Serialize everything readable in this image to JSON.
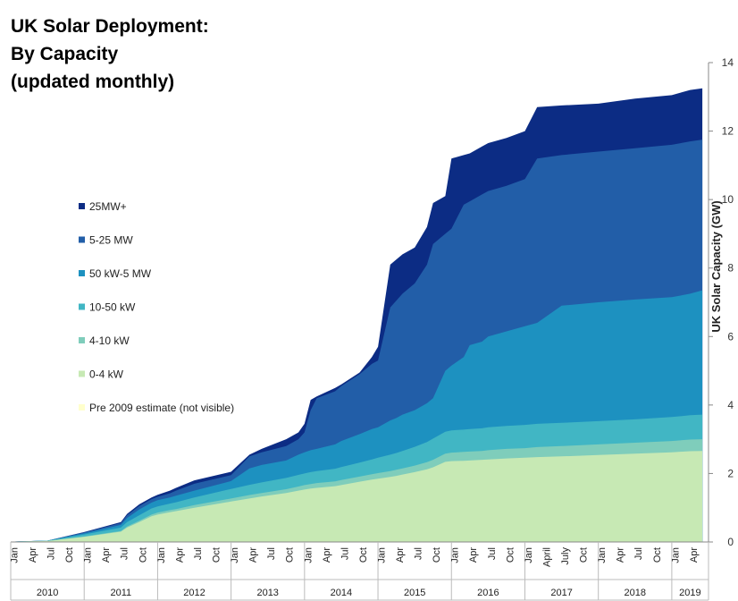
{
  "chart_data": {
    "type": "area",
    "title_lines": [
      "UK Solar Deployment:",
      "By Capacity",
      "(updated monthly)"
    ],
    "ylabel": "UK Solar Capacity (GW)",
    "ylim": [
      0,
      14
    ],
    "yticks": [
      0,
      2,
      4,
      6,
      8,
      10,
      12,
      14
    ],
    "x_start": "2010-01",
    "x_end": "2019-06",
    "years": [
      "2010",
      "2011",
      "2012",
      "2013",
      "2014",
      "2015",
      "2016",
      "2017",
      "2018",
      "2019"
    ],
    "month_ticks": [
      {
        "t": 0,
        "label": "Jan"
      },
      {
        "t": 3,
        "label": "Apr"
      },
      {
        "t": 6,
        "label": "Jul"
      },
      {
        "t": 9,
        "label": "Oct"
      },
      {
        "t": 12,
        "label": "Jan"
      },
      {
        "t": 15,
        "label": "Apr"
      },
      {
        "t": 18,
        "label": "Jul"
      },
      {
        "t": 21,
        "label": "Oct"
      },
      {
        "t": 24,
        "label": "Jan"
      },
      {
        "t": 27,
        "label": "Apr"
      },
      {
        "t": 30,
        "label": "Jul"
      },
      {
        "t": 33,
        "label": "Oct"
      },
      {
        "t": 36,
        "label": "Jan"
      },
      {
        "t": 39,
        "label": "Apr"
      },
      {
        "t": 42,
        "label": "Jul"
      },
      {
        "t": 45,
        "label": "Oct"
      },
      {
        "t": 48,
        "label": "Jan"
      },
      {
        "t": 51,
        "label": "Apr"
      },
      {
        "t": 54,
        "label": "Jul"
      },
      {
        "t": 57,
        "label": "Oct"
      },
      {
        "t": 60,
        "label": "Jan"
      },
      {
        "t": 63,
        "label": "Apr"
      },
      {
        "t": 66,
        "label": "Jul"
      },
      {
        "t": 69,
        "label": "Oct"
      },
      {
        "t": 72,
        "label": "Jan"
      },
      {
        "t": 75,
        "label": "Apr"
      },
      {
        "t": 78,
        "label": "Jul"
      },
      {
        "t": 81,
        "label": "Oct"
      },
      {
        "t": 84,
        "label": "Jan"
      },
      {
        "t": 87,
        "label": "April"
      },
      {
        "t": 90,
        "label": "July"
      },
      {
        "t": 93,
        "label": "Oct"
      },
      {
        "t": 96,
        "label": "Jan"
      },
      {
        "t": 99,
        "label": "Apr"
      },
      {
        "t": 102,
        "label": "Jul"
      },
      {
        "t": 105,
        "label": "Oct"
      },
      {
        "t": 108,
        "label": "Jan"
      },
      {
        "t": 111,
        "label": "Apr"
      }
    ],
    "x_months": [
      0,
      6,
      12,
      18,
      19,
      21,
      23,
      24,
      26,
      27,
      30,
      36,
      39,
      41,
      45,
      47,
      48,
      49,
      50,
      53,
      54,
      57,
      59,
      60,
      62,
      63,
      64,
      66,
      68,
      69,
      71,
      72,
      74,
      75,
      77,
      78,
      81,
      84,
      86,
      90,
      96,
      102,
      108,
      111,
      113
    ],
    "series": [
      {
        "name": "0-4 kW",
        "color": "#c7e9b4",
        "cumulative": [
          0.01,
          0.03,
          0.15,
          0.3,
          0.42,
          0.58,
          0.75,
          0.8,
          0.87,
          0.9,
          1.0,
          1.18,
          1.27,
          1.33,
          1.43,
          1.5,
          1.53,
          1.56,
          1.58,
          1.63,
          1.66,
          1.76,
          1.82,
          1.85,
          1.9,
          1.93,
          1.97,
          2.04,
          2.12,
          2.18,
          2.34,
          2.36,
          2.37,
          2.38,
          2.4,
          2.41,
          2.44,
          2.46,
          2.48,
          2.5,
          2.54,
          2.58,
          2.62,
          2.65,
          2.66
        ]
      },
      {
        "name": "4-10 kW",
        "color": "#7fcdbb",
        "cumulative": [
          0.01,
          0.03,
          0.16,
          0.32,
          0.45,
          0.62,
          0.8,
          0.86,
          0.93,
          0.96,
          1.08,
          1.27,
          1.37,
          1.43,
          1.54,
          1.62,
          1.66,
          1.69,
          1.72,
          1.77,
          1.81,
          1.91,
          1.98,
          2.01,
          2.07,
          2.11,
          2.15,
          2.23,
          2.33,
          2.4,
          2.58,
          2.61,
          2.63,
          2.64,
          2.66,
          2.68,
          2.72,
          2.74,
          2.77,
          2.8,
          2.85,
          2.9,
          2.95,
          2.99,
          3.0
        ]
      },
      {
        "name": "10-50 kW",
        "color": "#41b6c4",
        "cumulative": [
          0.01,
          0.04,
          0.22,
          0.42,
          0.58,
          0.78,
          0.98,
          1.04,
          1.12,
          1.16,
          1.3,
          1.55,
          1.67,
          1.74,
          1.87,
          1.96,
          2.0,
          2.04,
          2.07,
          2.14,
          2.19,
          2.32,
          2.41,
          2.46,
          2.55,
          2.6,
          2.66,
          2.78,
          2.92,
          3.02,
          3.22,
          3.26,
          3.28,
          3.3,
          3.32,
          3.35,
          3.39,
          3.42,
          3.45,
          3.48,
          3.53,
          3.58,
          3.65,
          3.7,
          3.72
        ]
      },
      {
        "name": "50 kW-5 MW",
        "color": "#1d91c0",
        "cumulative": [
          0.01,
          0.04,
          0.25,
          0.5,
          0.7,
          0.95,
          1.15,
          1.22,
          1.3,
          1.35,
          1.5,
          1.78,
          2.15,
          2.25,
          2.38,
          2.55,
          2.62,
          2.68,
          2.72,
          2.85,
          2.95,
          3.15,
          3.3,
          3.35,
          3.55,
          3.62,
          3.72,
          3.85,
          4.05,
          4.2,
          5.0,
          5.15,
          5.4,
          5.75,
          5.85,
          6.0,
          6.15,
          6.3,
          6.4,
          6.9,
          7.0,
          7.08,
          7.15,
          7.25,
          7.35
        ]
      },
      {
        "name": "5-25 MW",
        "color": "#225ea8",
        "cumulative": [
          0.01,
          0.04,
          0.28,
          0.55,
          0.78,
          1.05,
          1.25,
          1.32,
          1.42,
          1.5,
          1.7,
          1.95,
          2.5,
          2.62,
          2.8,
          3.0,
          3.2,
          3.85,
          4.2,
          4.4,
          4.55,
          4.9,
          5.2,
          5.3,
          6.85,
          7.05,
          7.25,
          7.55,
          8.1,
          8.7,
          9.0,
          9.15,
          9.85,
          9.95,
          10.15,
          10.25,
          10.4,
          10.6,
          11.2,
          11.3,
          11.4,
          11.5,
          11.6,
          11.7,
          11.75
        ]
      },
      {
        "name": "25MW+",
        "color": "#0c2c84",
        "cumulative": [
          0.01,
          0.04,
          0.29,
          0.58,
          0.82,
          1.1,
          1.3,
          1.38,
          1.5,
          1.58,
          1.8,
          2.05,
          2.55,
          2.72,
          3.0,
          3.2,
          3.45,
          4.15,
          4.25,
          4.5,
          4.6,
          4.95,
          5.4,
          5.7,
          8.1,
          8.25,
          8.4,
          8.6,
          9.2,
          9.9,
          10.1,
          11.2,
          11.3,
          11.35,
          11.55,
          11.65,
          11.8,
          12.0,
          12.7,
          12.75,
          12.8,
          12.95,
          13.05,
          13.2,
          13.25
        ]
      },
      {
        "name": "Pre 2009 estimate (not visible)",
        "color": "#ffffcc",
        "cumulative": [
          0.01,
          0.03,
          0.15,
          0.3,
          0.42,
          0.58,
          0.75,
          0.8,
          0.87,
          0.9,
          1.0,
          1.18,
          1.27,
          1.33,
          1.43,
          1.5,
          1.53,
          1.56,
          1.58,
          1.63,
          1.66,
          1.76,
          1.82,
          1.85,
          1.9,
          1.93,
          1.97,
          2.04,
          2.12,
          2.18,
          2.34,
          2.36,
          2.37,
          2.38,
          2.4,
          2.41,
          2.44,
          2.46,
          2.48,
          2.5,
          2.54,
          2.58,
          2.62,
          2.65,
          2.66
        ]
      }
    ],
    "legend_order": [
      "25MW+",
      "5-25 MW",
      "50 kW-5 MW",
      "10-50 kW",
      "4-10 kW",
      "0-4 kW",
      "Pre 2009 estimate (not visible)"
    ],
    "legend_placement": "middle-left",
    "grid": false
  }
}
